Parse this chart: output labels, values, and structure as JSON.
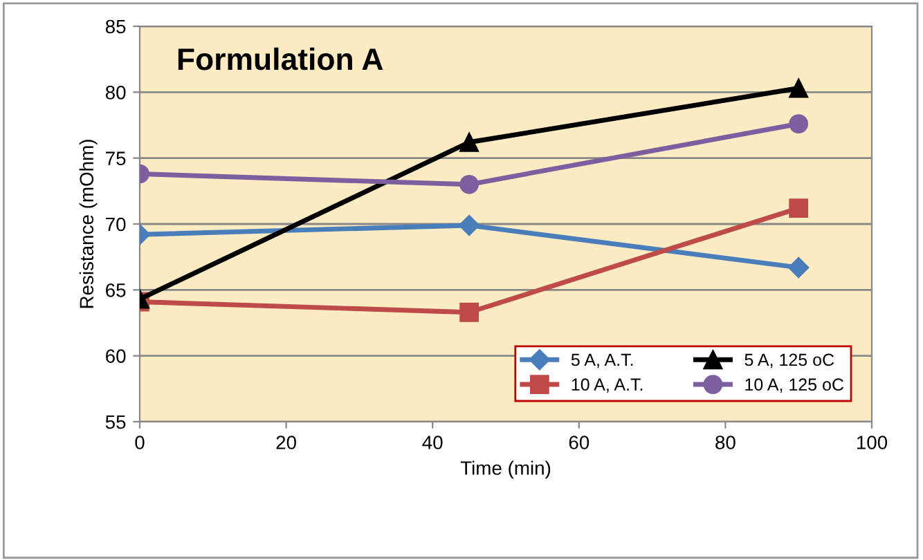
{
  "chart_data": {
    "type": "line",
    "title": "Formulation A",
    "xlabel": "Time (min)",
    "ylabel": "Resistance (mOhm)",
    "x": [
      0,
      45,
      90
    ],
    "series": [
      {
        "name": "5 A, A.T.",
        "color": "#4a7ebb",
        "marker": "diamond",
        "values": [
          69.2,
          69.9,
          66.7
        ]
      },
      {
        "name": "10 A, A.T.",
        "color": "#be4b48",
        "marker": "square",
        "values": [
          64.1,
          63.3,
          71.2
        ]
      },
      {
        "name": "5 A, 125 oC",
        "color": "#000000",
        "marker": "triangle",
        "values": [
          64.3,
          76.2,
          80.3
        ]
      },
      {
        "name": "10 A, 125 oC",
        "color": "#7d5fa0",
        "marker": "circle",
        "values": [
          73.8,
          73.0,
          77.6
        ]
      }
    ],
    "xlim": [
      0,
      100
    ],
    "xticks": [
      0,
      20,
      40,
      60,
      80,
      100
    ],
    "ylim": [
      55,
      85
    ],
    "yticks": [
      55,
      60,
      65,
      70,
      75,
      80,
      85
    ],
    "grid": "y",
    "legend": "bottom right"
  }
}
